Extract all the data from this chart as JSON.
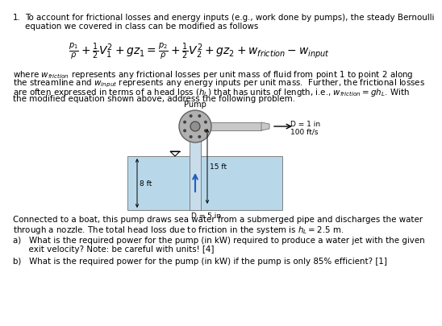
{
  "bg_color": "#ffffff",
  "text_color": "#000000",
  "diagram_bg": "#b8d8ea",
  "pump_gray": "#b0b0b0",
  "pump_dark": "#606060",
  "pipe_blue": "#c8dcea",
  "nozzle_gray": "#c8c8c8",
  "arrow_color": "#2060c0",
  "number": "1.",
  "line1": "To account for frictional losses and energy inputs (e.g., work done by pumps), the steady Bernoulli",
  "line2": "equation we covered in class can be modified as follows",
  "para1": "where $w_{friction}$ represents any frictional losses per unit mass of fluid from point 1 to point 2 along",
  "para2": "the streamline and $w_{input}$ represents any energy inputs per unit mass.  Further, the frictional losses",
  "para3": "are often expressed in terms of a head loss ($h_L$) that has units of length, i.e., $w_{friction} = gh_L$. With",
  "para4": "the modified equation shown above, address the following problem.",
  "pump_label": "Pump",
  "D1_label": "D = 1 in",
  "vel_label": "100 ft/s",
  "height_label": "15 ft",
  "depth_label": "8 ft",
  "D2_label": "D = 5 in",
  "conn1": "Connected to a boat, this pump draws sea water from a submerged pipe and discharges the water",
  "conn2": "through a nozzle. The total head loss due to friction in the system is $h_L = 2.5$ m.",
  "parta1": "a)   What is the required power for the pump (in kW) required to produce a water jet with the given",
  "parta2": "      exit velocity? Note: be careful with units! [4]",
  "partb": "b)   What is the required power for the pump (in kW) if the pump is only 85% efficient? [1]"
}
